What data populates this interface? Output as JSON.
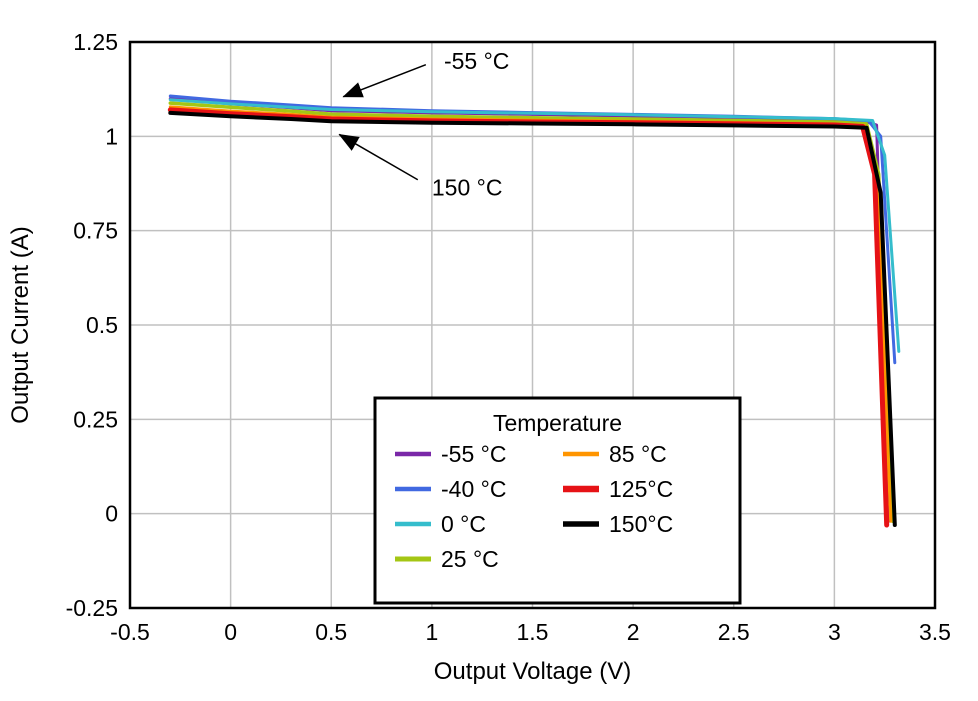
{
  "chart_data": {
    "type": "line",
    "title": "",
    "xlabel": "Output Voltage (V)",
    "ylabel": "Output Current (A)",
    "xlim": [
      -0.5,
      3.5
    ],
    "ylim": [
      -0.25,
      1.25
    ],
    "xticks": [
      -0.5,
      0,
      0.5,
      1,
      1.5,
      2,
      2.5,
      3,
      3.5
    ],
    "xtick_labels": [
      "-0.5",
      "0",
      "0.5",
      "1",
      "1.5",
      "2",
      "2.5",
      "3",
      "3.5"
    ],
    "yticks": [
      -0.25,
      0,
      0.25,
      0.5,
      0.75,
      1,
      1.25
    ],
    "ytick_labels": [
      "-0.25",
      "0",
      "0.25",
      "0.5",
      "0.75",
      "1",
      "1.25"
    ],
    "grid": true,
    "grid_color": "#c0c0c0",
    "frame_color": "#000000",
    "legend": {
      "title": "Temperature",
      "position": "inside-bottom-center",
      "columns": [
        4,
        3
      ]
    },
    "series": [
      {
        "name": "-55 °C",
        "color": "#7A28A8",
        "width": 3,
        "points": [
          [
            -0.3,
            1.1
          ],
          [
            0,
            1.086
          ],
          [
            0.3,
            1.076
          ],
          [
            0.5,
            1.068
          ],
          [
            1,
            1.062
          ],
          [
            1.5,
            1.058
          ],
          [
            2,
            1.054
          ],
          [
            2.5,
            1.05
          ],
          [
            3,
            1.045
          ],
          [
            3.15,
            1.04
          ],
          [
            3.21,
            1.03
          ],
          [
            3.27,
            -0.02
          ]
        ]
      },
      {
        "name": "-40 °C",
        "color": "#4169E1",
        "width": 3,
        "points": [
          [
            -0.3,
            1.107
          ],
          [
            0,
            1.093
          ],
          [
            0.3,
            1.083
          ],
          [
            0.5,
            1.076
          ],
          [
            1,
            1.068
          ],
          [
            1.5,
            1.063
          ],
          [
            2,
            1.058
          ],
          [
            2.5,
            1.053
          ],
          [
            3,
            1.047
          ],
          [
            3.17,
            1.041
          ],
          [
            3.23,
            1.0
          ],
          [
            3.3,
            0.4
          ]
        ]
      },
      {
        "name": "0 °C",
        "color": "#35BDCC",
        "width": 3,
        "points": [
          [
            -0.3,
            1.097
          ],
          [
            0,
            1.086
          ],
          [
            0.3,
            1.077
          ],
          [
            0.5,
            1.071
          ],
          [
            1,
            1.065
          ],
          [
            1.5,
            1.061
          ],
          [
            2,
            1.057
          ],
          [
            2.5,
            1.052
          ],
          [
            3,
            1.047
          ],
          [
            3.19,
            1.042
          ],
          [
            3.25,
            0.95
          ],
          [
            3.32,
            0.43
          ]
        ]
      },
      {
        "name": "25 °C",
        "color": "#A4C614",
        "width": 3.5,
        "points": [
          [
            -0.3,
            1.088
          ],
          [
            0,
            1.077
          ],
          [
            0.3,
            1.067
          ],
          [
            0.5,
            1.059
          ],
          [
            1,
            1.053
          ],
          [
            1.5,
            1.049
          ],
          [
            2,
            1.046
          ],
          [
            2.5,
            1.042
          ],
          [
            3,
            1.038
          ],
          [
            3.16,
            1.033
          ],
          [
            3.22,
            0.9
          ],
          [
            3.29,
            -0.02
          ]
        ]
      },
      {
        "name": "85 °C",
        "color": "#FF9500",
        "width": 3,
        "points": [
          [
            -0.3,
            1.078
          ],
          [
            0,
            1.067
          ],
          [
            0.3,
            1.058
          ],
          [
            0.5,
            1.051
          ],
          [
            1,
            1.046
          ],
          [
            1.5,
            1.043
          ],
          [
            2,
            1.04
          ],
          [
            2.5,
            1.037
          ],
          [
            3,
            1.033
          ],
          [
            3.15,
            1.029
          ],
          [
            3.21,
            0.9
          ],
          [
            3.28,
            -0.02
          ]
        ]
      },
      {
        "name": "125°C",
        "color": "#E61216",
        "width": 5,
        "points": [
          [
            -0.3,
            1.07
          ],
          [
            0,
            1.06
          ],
          [
            0.3,
            1.052
          ],
          [
            0.5,
            1.046
          ],
          [
            1,
            1.041
          ],
          [
            1.5,
            1.038
          ],
          [
            2,
            1.036
          ],
          [
            2.5,
            1.033
          ],
          [
            3,
            1.03
          ],
          [
            3.14,
            1.026
          ],
          [
            3.2,
            0.9
          ],
          [
            3.26,
            -0.03
          ]
        ]
      },
      {
        "name": "150°C",
        "color": "#000000",
        "width": 4,
        "points": [
          [
            -0.3,
            1.062
          ],
          [
            0,
            1.053
          ],
          [
            0.3,
            1.046
          ],
          [
            0.5,
            1.04
          ],
          [
            1,
            1.036
          ],
          [
            1.5,
            1.034
          ],
          [
            2,
            1.032
          ],
          [
            2.5,
            1.029
          ],
          [
            3,
            1.026
          ],
          [
            3.16,
            1.023
          ],
          [
            3.23,
            0.85
          ],
          [
            3.3,
            -0.03
          ]
        ]
      }
    ],
    "annotations": [
      {
        "text": "-55 °C",
        "text_x": 1.06,
        "text_y": 1.2,
        "tail_x": 0.97,
        "tail_y": 1.19,
        "tip_x": 0.56,
        "tip_y": 1.105
      },
      {
        "text": "150 °C",
        "text_x": 1.0,
        "text_y": 0.865,
        "tail_x": 0.93,
        "tail_y": 0.885,
        "tip_x": 0.54,
        "tip_y": 1.005
      }
    ]
  }
}
